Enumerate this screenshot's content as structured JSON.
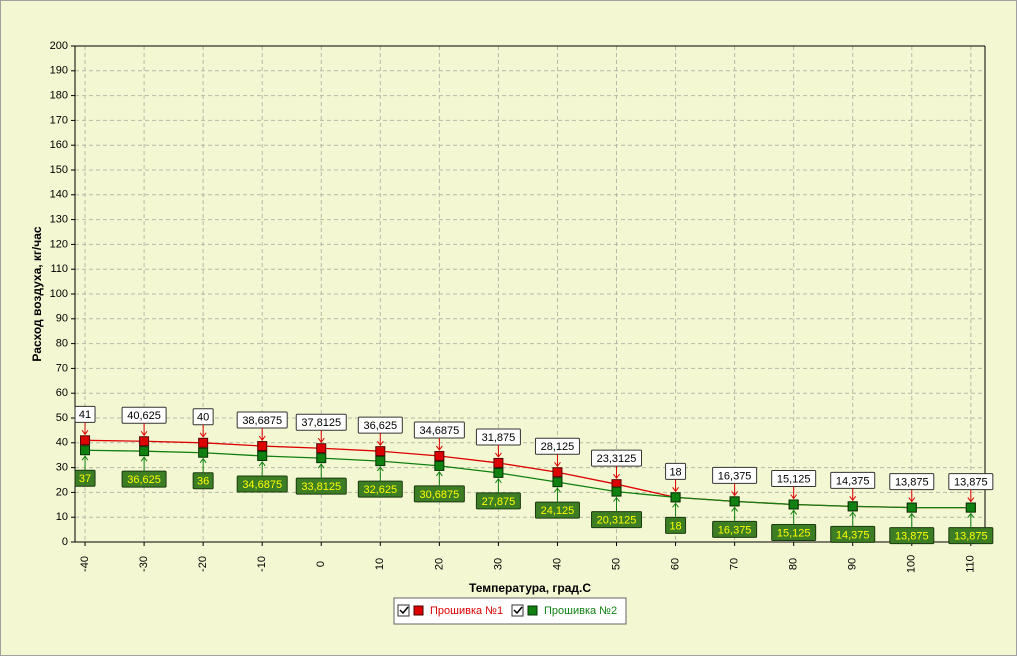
{
  "chart_data": {
    "type": "line",
    "xlabel": "Температура, град.С",
    "ylabel": "Расход воздуха, кг/час",
    "x": [
      -40,
      -30,
      -20,
      -10,
      0,
      10,
      20,
      30,
      40,
      50,
      60,
      70,
      80,
      90,
      100,
      110
    ],
    "series": [
      {
        "name": "Прошивка №1",
        "color": "#dd0000",
        "values": [
          41,
          40.625,
          40,
          38.6875,
          37.8125,
          36.625,
          34.6875,
          31.875,
          28.125,
          23.3125,
          18,
          16.375,
          15.125,
          14.375,
          13.875,
          13.875
        ],
        "value_labels": [
          "41",
          "40,625",
          "40",
          "38,6875",
          "37,8125",
          "36,625",
          "34,6875",
          "31,875",
          "28,125",
          "23,3125",
          "18",
          "16,375",
          "15,125",
          "14,375",
          "13,875",
          "13,875"
        ]
      },
      {
        "name": "Прошивка №2",
        "color": "#108010",
        "values": [
          37,
          36.625,
          36,
          34.6875,
          33.8125,
          32.625,
          30.6875,
          27.875,
          24.125,
          20.3125,
          18,
          16.375,
          15.125,
          14.375,
          13.875,
          13.875
        ],
        "value_labels": [
          "37",
          "36,625",
          "36",
          "34,6875",
          "33,8125",
          "32,625",
          "30,6875",
          "27,875",
          "24,125",
          "20,3125",
          "18",
          "16,375",
          "15,125",
          "14,375",
          "13,875",
          "13,875"
        ]
      }
    ],
    "xlim": [
      -41.7,
      112.4
    ],
    "xticks": [
      -40,
      -30,
      -20,
      -10,
      0,
      10,
      20,
      30,
      40,
      50,
      60,
      70,
      80,
      90,
      100,
      110
    ],
    "ylim": [
      0,
      200
    ],
    "yticks": [
      0,
      10,
      20,
      30,
      40,
      50,
      60,
      70,
      80,
      90,
      100,
      110,
      120,
      130,
      140,
      150,
      160,
      170,
      180,
      190,
      200
    ],
    "grid": true
  }
}
